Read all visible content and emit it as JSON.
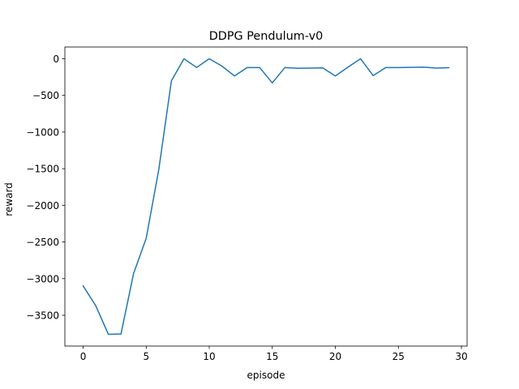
{
  "chart_data": {
    "type": "line",
    "title": "DDPG Pendulum-v0",
    "xlabel": "episode",
    "ylabel": "reward",
    "xlim": [
      -1.45,
      30.45
    ],
    "ylim": [
      -3920,
      160
    ],
    "xticks": [
      0,
      5,
      10,
      15,
      20,
      25,
      30
    ],
    "xtick_labels": [
      "0",
      "5",
      "10",
      "15",
      "20",
      "25",
      "30"
    ],
    "yticks": [
      0,
      -500,
      -1000,
      -1500,
      -2000,
      -2500,
      -3000,
      -3500
    ],
    "ytick_labels": [
      "0",
      "−500",
      "−1000",
      "−1500",
      "−2000",
      "−2500",
      "−3000",
      "−3500"
    ],
    "grid": false,
    "series": [
      {
        "color": "#1f77b4",
        "x": [
          0,
          1,
          2,
          3,
          4,
          5,
          6,
          7,
          8,
          9,
          10,
          11,
          12,
          13,
          14,
          15,
          16,
          17,
          18,
          19,
          20,
          21,
          22,
          23,
          24,
          25,
          26,
          27,
          28,
          29
        ],
        "y": [
          -3100,
          -3370,
          -3760,
          -3755,
          -2930,
          -2450,
          -1510,
          -300,
          0,
          -120,
          0,
          -100,
          -235,
          -120,
          -120,
          -330,
          -120,
          -130,
          -128,
          -125,
          -235,
          -115,
          0,
          -230,
          -120,
          -120,
          -118,
          -115,
          -128,
          -122
        ]
      }
    ]
  }
}
